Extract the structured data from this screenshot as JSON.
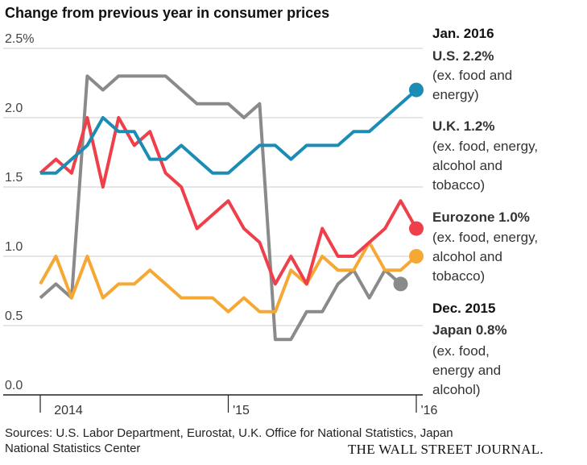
{
  "chart_data": {
    "type": "line",
    "title": "Change from previous year in consumer prices",
    "categories": [
      "2014",
      null,
      null,
      null,
      null,
      null,
      null,
      null,
      null,
      null,
      null,
      null,
      "'15",
      null,
      null,
      null,
      null,
      null,
      null,
      null,
      null,
      null,
      null,
      null,
      "'16"
    ],
    "ylim": [
      0,
      2.5
    ],
    "yticks": [
      {
        "value": 0,
        "label": "0.0"
      },
      0.5,
      {
        "value": 1,
        "label": "1.0"
      },
      1.5,
      {
        "value": 2,
        "label": "2.0"
      },
      {
        "value": 2.5,
        "label": "2.5%"
      }
    ],
    "grid": true,
    "annotations": [
      "Jan. 2016",
      "Dec. 2015"
    ],
    "series": [
      {
        "name": "U.S. 2.2%",
        "note": "(ex. food and energy)",
        "color": "#1b8db5",
        "values": [
          1.6,
          1.6,
          1.7,
          1.8,
          2.0,
          1.9,
          1.9,
          1.7,
          1.7,
          1.8,
          1.7,
          1.6,
          1.6,
          1.7,
          1.8,
          1.8,
          1.7,
          1.8,
          1.8,
          1.8,
          1.9,
          1.9,
          2.0,
          2.1,
          2.2
        ]
      },
      {
        "name": "U.K. 1.2%",
        "note": "(ex. food, energy, alcohol and tobacco)",
        "color": "#ef3f4a",
        "values": [
          1.6,
          1.7,
          1.6,
          2.0,
          1.5,
          2.0,
          1.8,
          1.9,
          1.6,
          1.5,
          1.2,
          1.3,
          1.4,
          1.2,
          1.1,
          0.8,
          1.0,
          0.8,
          1.2,
          1.0,
          1.0,
          1.1,
          1.2,
          1.4,
          1.2
        ]
      },
      {
        "name": "Eurozone 1.0%",
        "note": "(ex. food, energy, alcohol and tobacco)",
        "color": "#f6a834",
        "values": [
          0.8,
          1.0,
          0.7,
          1.0,
          0.7,
          0.8,
          0.8,
          0.9,
          0.8,
          0.7,
          0.7,
          0.7,
          0.6,
          0.7,
          0.6,
          0.6,
          0.9,
          0.8,
          1.0,
          0.9,
          0.9,
          1.1,
          0.9,
          0.9,
          1.0
        ]
      },
      {
        "name": "Japan 0.8%",
        "note": "(ex. food, energy and alcohol)",
        "color": "#8a8a8a",
        "values": [
          0.7,
          0.8,
          0.7,
          2.3,
          2.2,
          2.3,
          2.3,
          2.3,
          2.3,
          2.2,
          2.1,
          2.1,
          2.1,
          2.0,
          2.1,
          0.4,
          0.4,
          0.6,
          0.6,
          0.8,
          0.9,
          0.7,
          0.9,
          0.8,
          null
        ]
      }
    ],
    "source": "Sources: U.S. Labor Department, Eurostat, U.K. Office for National Statistics, Japan National Statistics Center",
    "credit": "THE WALL STREET JOURNAL."
  }
}
